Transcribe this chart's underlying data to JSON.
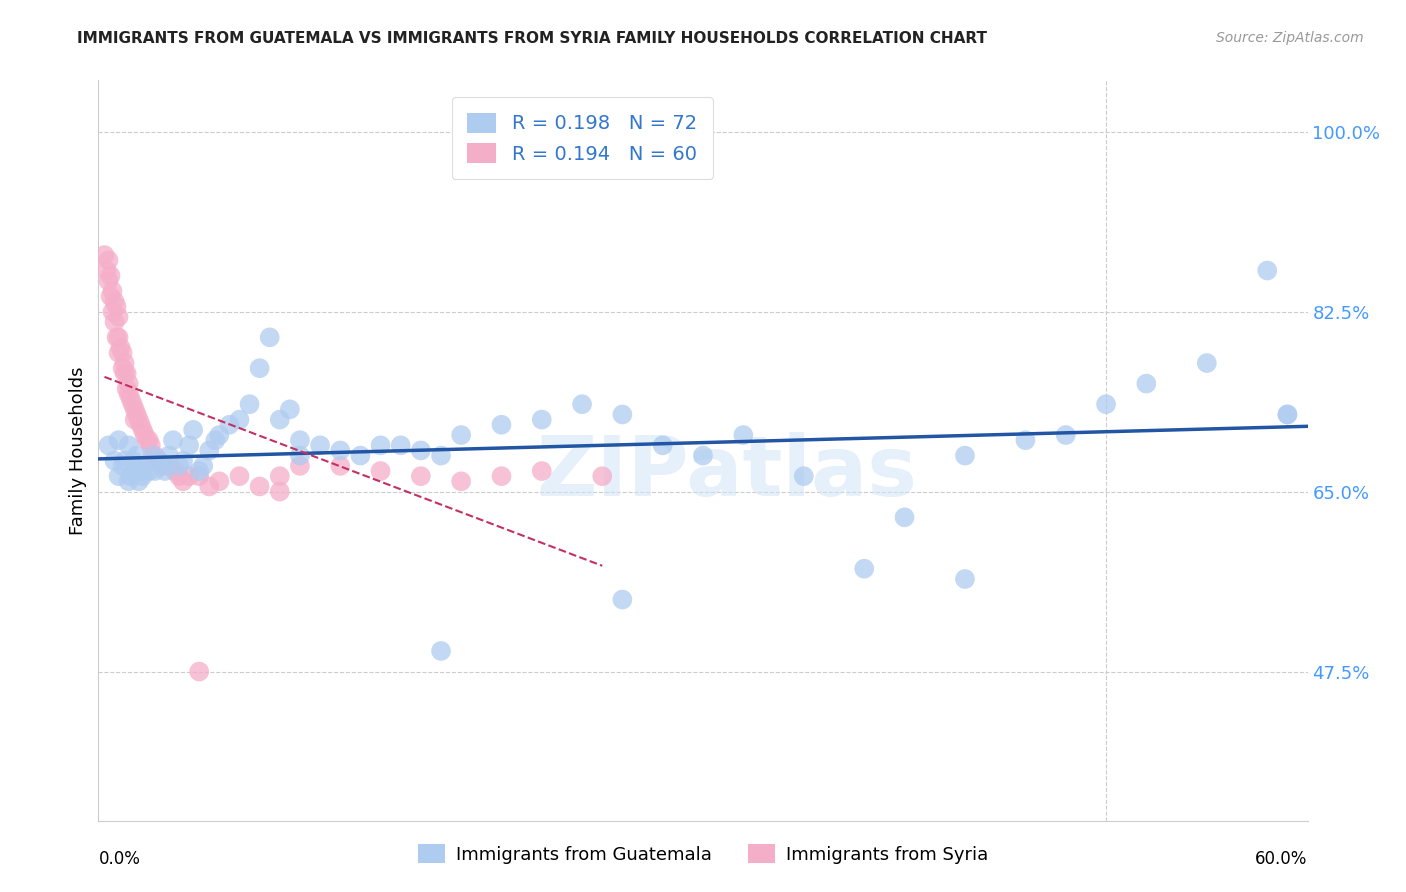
{
  "title": "IMMIGRANTS FROM GUATEMALA VS IMMIGRANTS FROM SYRIA FAMILY HOUSEHOLDS CORRELATION CHART",
  "source": "Source: ZipAtlas.com",
  "ylabel": "Family Households",
  "ytick_labels": [
    "100.0%",
    "82.5%",
    "65.0%",
    "47.5%"
  ],
  "ytick_values": [
    1.0,
    0.825,
    0.65,
    0.475
  ],
  "xlim": [
    0.0,
    0.6
  ],
  "ylim": [
    0.33,
    1.05
  ],
  "legend1_r": "0.198",
  "legend1_n": "72",
  "legend2_r": "0.194",
  "legend2_n": "60",
  "guatemala_color": "#aecbf0",
  "syria_color": "#f5aec8",
  "trendline_guatemala_color": "#2255a4",
  "trendline_syria_color": "#c43060",
  "watermark": "ZIPatlas",
  "guatemala_x": [
    0.005,
    0.008,
    0.01,
    0.01,
    0.012,
    0.013,
    0.015,
    0.015,
    0.016,
    0.017,
    0.018,
    0.019,
    0.02,
    0.021,
    0.022,
    0.023,
    0.025,
    0.027,
    0.028,
    0.03,
    0.032,
    0.033,
    0.035,
    0.037,
    0.04,
    0.042,
    0.045,
    0.047,
    0.05,
    0.052,
    0.055,
    0.058,
    0.06,
    0.065,
    0.07,
    0.075,
    0.08,
    0.085,
    0.09,
    0.095,
    0.1,
    0.1,
    0.11,
    0.12,
    0.13,
    0.14,
    0.15,
    0.16,
    0.17,
    0.18,
    0.2,
    0.22,
    0.24,
    0.26,
    0.28,
    0.3,
    0.32,
    0.35,
    0.38,
    0.4,
    0.43,
    0.46,
    0.48,
    0.5,
    0.52,
    0.55,
    0.58,
    0.59,
    0.17,
    0.26,
    0.43,
    0.59
  ],
  "guatemala_y": [
    0.695,
    0.68,
    0.7,
    0.665,
    0.675,
    0.68,
    0.66,
    0.695,
    0.665,
    0.68,
    0.67,
    0.685,
    0.66,
    0.67,
    0.665,
    0.675,
    0.67,
    0.685,
    0.67,
    0.68,
    0.675,
    0.67,
    0.685,
    0.7,
    0.675,
    0.68,
    0.695,
    0.71,
    0.67,
    0.675,
    0.69,
    0.7,
    0.705,
    0.715,
    0.72,
    0.735,
    0.77,
    0.8,
    0.72,
    0.73,
    0.7,
    0.685,
    0.695,
    0.69,
    0.685,
    0.695,
    0.695,
    0.69,
    0.685,
    0.705,
    0.715,
    0.72,
    0.735,
    0.725,
    0.695,
    0.685,
    0.705,
    0.665,
    0.575,
    0.625,
    0.685,
    0.7,
    0.705,
    0.735,
    0.755,
    0.775,
    0.865,
    0.725,
    0.495,
    0.545,
    0.565,
    0.725
  ],
  "syria_x": [
    0.003,
    0.004,
    0.005,
    0.005,
    0.006,
    0.006,
    0.007,
    0.007,
    0.008,
    0.008,
    0.009,
    0.009,
    0.01,
    0.01,
    0.01,
    0.011,
    0.012,
    0.012,
    0.013,
    0.013,
    0.014,
    0.014,
    0.015,
    0.015,
    0.016,
    0.017,
    0.018,
    0.018,
    0.019,
    0.02,
    0.021,
    0.022,
    0.023,
    0.024,
    0.025,
    0.026,
    0.028,
    0.03,
    0.032,
    0.035,
    0.038,
    0.04,
    0.042,
    0.045,
    0.05,
    0.055,
    0.06,
    0.07,
    0.08,
    0.09,
    0.1,
    0.12,
    0.14,
    0.16,
    0.18,
    0.2,
    0.22,
    0.25,
    0.05,
    0.09
  ],
  "syria_y": [
    0.88,
    0.865,
    0.875,
    0.855,
    0.86,
    0.84,
    0.845,
    0.825,
    0.835,
    0.815,
    0.83,
    0.8,
    0.82,
    0.8,
    0.785,
    0.79,
    0.785,
    0.77,
    0.775,
    0.765,
    0.765,
    0.75,
    0.755,
    0.745,
    0.74,
    0.735,
    0.73,
    0.72,
    0.725,
    0.72,
    0.715,
    0.71,
    0.705,
    0.7,
    0.7,
    0.695,
    0.685,
    0.68,
    0.675,
    0.675,
    0.67,
    0.665,
    0.66,
    0.665,
    0.665,
    0.655,
    0.66,
    0.665,
    0.655,
    0.665,
    0.675,
    0.675,
    0.67,
    0.665,
    0.66,
    0.665,
    0.67,
    0.665,
    0.475,
    0.65
  ]
}
